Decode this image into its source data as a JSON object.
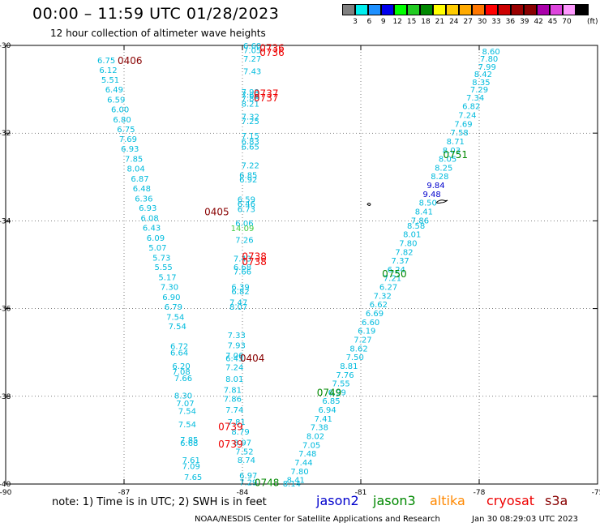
{
  "header": {
    "title": "00:00 – 11:59 UTC 01/28/2023",
    "subtitle": "12 hour collection of altimeter wave heights"
  },
  "legend": {
    "unit": "(ft)",
    "colors": [
      "#808080",
      "#00eeee",
      "#1e90ff",
      "#0000ee",
      "#00ff00",
      "#22cc22",
      "#008800",
      "#ffff00",
      "#ffcc00",
      "#ffaa00",
      "#ff7700",
      "#ff0000",
      "#cc0000",
      "#990000",
      "#880000",
      "#aa00aa",
      "#dd44dd",
      "#ff99ff",
      "#000000"
    ],
    "labels": [
      "3",
      "6",
      "9",
      "12",
      "15",
      "18",
      "21",
      "24",
      "27",
      "30",
      "33",
      "36",
      "39",
      "42",
      "45",
      "70"
    ]
  },
  "axes": {
    "x_ticks": [
      "-90",
      "-87",
      "-84",
      "-81",
      "-78",
      "-75"
    ],
    "y_ticks": [
      "-30",
      "-32",
      "-34",
      "-36",
      "-38",
      "-40"
    ]
  },
  "footer": {
    "note": "note:  1) Time is in UTC;  2) SWH is in feet",
    "satellites": [
      {
        "name": "jason2",
        "color": "#0000cc"
      },
      {
        "name": "jason3",
        "color": "#008800"
      },
      {
        "name": "altika",
        "color": "#ff8800"
      },
      {
        "name": "cryosat",
        "color": "#ee0000"
      },
      {
        "name": "s3a",
        "color": "#880000"
      }
    ],
    "credit": "NOAA/NESDIS Center for Satellite Applications and Research",
    "timestamp": "Jan 30 08:29:03 UTC 2023"
  },
  "time_labels": [
    {
      "text": "0406",
      "color": "#880000",
      "lon": -86.85,
      "lat": -30.33
    },
    {
      "text": "0736",
      "color": "#ee0000",
      "lon": -83.25,
      "lat": -30.05
    },
    {
      "text": "0736",
      "color": "#ee0000",
      "lon": -83.25,
      "lat": -30.15
    },
    {
      "text": "0737",
      "color": "#ee0000",
      "lon": -83.4,
      "lat": -31.08
    },
    {
      "text": "0737",
      "color": "#ee0000",
      "lon": -83.4,
      "lat": -31.18
    },
    {
      "text": "0751",
      "color": "#008800",
      "lon": -78.6,
      "lat": -32.48
    },
    {
      "text": "0405",
      "color": "#880000",
      "lon": -84.65,
      "lat": -33.78
    },
    {
      "text": "0738",
      "color": "#ee0000",
      "lon": -83.7,
      "lat": -34.8
    },
    {
      "text": "0738",
      "color": "#ee0000",
      "lon": -83.7,
      "lat": -34.92
    },
    {
      "text": "0750",
      "color": "#008800",
      "lon": -80.15,
      "lat": -35.19
    },
    {
      "text": "0404",
      "color": "#880000",
      "lon": -83.75,
      "lat": -37.12
    },
    {
      "text": "0749",
      "color": "#008800",
      "lon": -81.8,
      "lat": -37.9
    },
    {
      "text": "0739",
      "color": "#ee0000",
      "lon": -84.3,
      "lat": -38.68
    },
    {
      "text": "0739",
      "color": "#ee0000",
      "lon": -84.3,
      "lat": -39.08
    },
    {
      "text": "0748",
      "color": "#008800",
      "lon": -83.38,
      "lat": -39.95
    }
  ],
  "swh_readings": [
    {
      "v": "6.75",
      "lon": -87.45,
      "lat": -30.33,
      "c": "#00bbdd"
    },
    {
      "v": "6.12",
      "lon": -87.4,
      "lat": -30.55,
      "c": "#00bbdd"
    },
    {
      "v": "5.51",
      "lon": -87.35,
      "lat": -30.78,
      "c": "#00bbdd"
    },
    {
      "v": "6.49",
      "lon": -87.25,
      "lat": -31.0,
      "c": "#00bbdd"
    },
    {
      "v": "6.59",
      "lon": -87.2,
      "lat": -31.23,
      "c": "#00bbdd"
    },
    {
      "v": "6.00",
      "lon": -87.1,
      "lat": -31.45,
      "c": "#00bbdd"
    },
    {
      "v": "6.80",
      "lon": -87.05,
      "lat": -31.68,
      "c": "#00bbdd"
    },
    {
      "v": "6.75",
      "lon": -86.95,
      "lat": -31.9,
      "c": "#00bbdd"
    },
    {
      "v": "7.69",
      "lon": -86.9,
      "lat": -32.13,
      "c": "#00bbdd"
    },
    {
      "v": "6.93",
      "lon": -86.85,
      "lat": -32.35,
      "c": "#00bbdd"
    },
    {
      "v": "7.85",
      "lon": -86.75,
      "lat": -32.58,
      "c": "#00bbdd"
    },
    {
      "v": "8.04",
      "lon": -86.7,
      "lat": -32.8,
      "c": "#00bbdd"
    },
    {
      "v": "6.87",
      "lon": -86.6,
      "lat": -33.03,
      "c": "#00bbdd"
    },
    {
      "v": "6.48",
      "lon": -86.55,
      "lat": -33.25,
      "c": "#00bbdd"
    },
    {
      "v": "6.36",
      "lon": -86.5,
      "lat": -33.48,
      "c": "#00bbdd"
    },
    {
      "v": "6.93",
      "lon": -86.4,
      "lat": -33.7,
      "c": "#00bbdd"
    },
    {
      "v": "6.08",
      "lon": -86.35,
      "lat": -33.93,
      "c": "#00bbdd"
    },
    {
      "v": "6.43",
      "lon": -86.3,
      "lat": -34.15,
      "c": "#00bbdd"
    },
    {
      "v": "6.09",
      "lon": -86.2,
      "lat": -34.38,
      "c": "#00bbdd"
    },
    {
      "v": "5.07",
      "lon": -86.15,
      "lat": -34.6,
      "c": "#00bbdd"
    },
    {
      "v": "5.73",
      "lon": -86.05,
      "lat": -34.83,
      "c": "#00bbdd"
    },
    {
      "v": "5.55",
      "lon": -86.0,
      "lat": -35.05,
      "c": "#00bbdd"
    },
    {
      "v": "5.17",
      "lon": -85.9,
      "lat": -35.28,
      "c": "#00bbdd"
    },
    {
      "v": "7.30",
      "lon": -85.85,
      "lat": -35.5,
      "c": "#00bbdd"
    },
    {
      "v": "6.90",
      "lon": -85.8,
      "lat": -35.73,
      "c": "#00bbdd"
    },
    {
      "v": "6.79",
      "lon": -85.75,
      "lat": -35.95,
      "c": "#00bbdd"
    },
    {
      "v": "7.54",
      "lon": -85.7,
      "lat": -36.18,
      "c": "#00bbdd"
    },
    {
      "v": "7.54",
      "lon": -85.65,
      "lat": -36.4,
      "c": "#00bbdd"
    },
    {
      "v": "6.72",
      "lon": -85.6,
      "lat": -36.85,
      "c": "#00bbdd"
    },
    {
      "v": "6.64",
      "lon": -85.6,
      "lat": -37.0,
      "c": "#00bbdd"
    },
    {
      "v": "6.20",
      "lon": -85.55,
      "lat": -37.3,
      "c": "#00bbdd"
    },
    {
      "v": "7.08",
      "lon": -85.55,
      "lat": -37.43,
      "c": "#00bbdd"
    },
    {
      "v": "7.66",
      "lon": -85.5,
      "lat": -37.58,
      "c": "#00bbdd"
    },
    {
      "v": "8.30",
      "lon": -85.5,
      "lat": -37.98,
      "c": "#00bbdd"
    },
    {
      "v": "7.07",
      "lon": -85.45,
      "lat": -38.15,
      "c": "#00bbdd"
    },
    {
      "v": "7.54",
      "lon": -85.4,
      "lat": -38.33,
      "c": "#00bbdd"
    },
    {
      "v": "7.54",
      "lon": -85.4,
      "lat": -38.63,
      "c": "#00bbdd"
    },
    {
      "v": "7.85",
      "lon": -85.35,
      "lat": -38.98,
      "c": "#00bbdd"
    },
    {
      "v": "6.68",
      "lon": -85.35,
      "lat": -39.06,
      "c": "#00bbdd"
    },
    {
      "v": "7.61",
      "lon": -85.3,
      "lat": -39.45,
      "c": "#00bbdd"
    },
    {
      "v": "7.09",
      "lon": -85.3,
      "lat": -39.58,
      "c": "#00bbdd"
    },
    {
      "v": "7.65",
      "lon": -85.25,
      "lat": -39.83,
      "c": "#00bbdd"
    },
    {
      "v": "6.60",
      "lon": -83.75,
      "lat": -30.0,
      "c": "#00bbdd"
    },
    {
      "v": "7.05",
      "lon": -83.75,
      "lat": -30.1,
      "c": "#00bbdd"
    },
    {
      "v": "7.27",
      "lon": -83.75,
      "lat": -30.3,
      "c": "#00bbdd"
    },
    {
      "v": "7.43",
      "lon": -83.75,
      "lat": -30.58,
      "c": "#00bbdd"
    },
    {
      "v": "7.93",
      "lon": -83.8,
      "lat": -31.05,
      "c": "#00bbdd"
    },
    {
      "v": "7.69",
      "lon": -83.8,
      "lat": -31.12,
      "c": "#00bbdd"
    },
    {
      "v": "7.88",
      "lon": -83.8,
      "lat": -31.2,
      "c": "#00bbdd"
    },
    {
      "v": "8.21",
      "lon": -83.8,
      "lat": -31.32,
      "c": "#00bbdd"
    },
    {
      "v": "7.32",
      "lon": -83.8,
      "lat": -31.62,
      "c": "#00bbdd"
    },
    {
      "v": "7.25",
      "lon": -83.8,
      "lat": -31.72,
      "c": "#00bbdd"
    },
    {
      "v": "7.15",
      "lon": -83.8,
      "lat": -32.05,
      "c": "#00bbdd"
    },
    {
      "v": "6.83",
      "lon": -83.8,
      "lat": -32.18,
      "c": "#00bbdd"
    },
    {
      "v": "6.65",
      "lon": -83.8,
      "lat": -32.3,
      "c": "#00bbdd"
    },
    {
      "v": "7.22",
      "lon": -83.8,
      "lat": -32.73,
      "c": "#00bbdd"
    },
    {
      "v": "6.85",
      "lon": -83.85,
      "lat": -32.95,
      "c": "#00bbdd"
    },
    {
      "v": "6.92",
      "lon": -83.85,
      "lat": -33.05,
      "c": "#00bbdd"
    },
    {
      "v": "6.59",
      "lon": -83.9,
      "lat": -33.5,
      "c": "#00bbdd"
    },
    {
      "v": "6.46",
      "lon": -83.9,
      "lat": -33.6,
      "c": "#00bbdd"
    },
    {
      "v": "6.73",
      "lon": -83.9,
      "lat": -33.72,
      "c": "#00bbdd"
    },
    {
      "v": "6.06",
      "lon": -83.95,
      "lat": -34.05,
      "c": "#00bbdd"
    },
    {
      "v": "14.09",
      "lon": -84.0,
      "lat": -34.16,
      "c": "#44cc44"
    },
    {
      "v": "7.26",
      "lon": -83.95,
      "lat": -34.43,
      "c": "#00bbdd"
    },
    {
      "v": "7.43",
      "lon": -84.0,
      "lat": -34.85,
      "c": "#00bbdd"
    },
    {
      "v": "6.68",
      "lon": -84.0,
      "lat": -35.05,
      "c": "#00bbdd"
    },
    {
      "v": "7.66",
      "lon": -84.0,
      "lat": -35.15,
      "c": "#00bbdd"
    },
    {
      "v": "6.39",
      "lon": -84.05,
      "lat": -35.5,
      "c": "#00bbdd"
    },
    {
      "v": "6.82",
      "lon": -84.05,
      "lat": -35.6,
      "c": "#00bbdd"
    },
    {
      "v": "7.47",
      "lon": -84.1,
      "lat": -35.85,
      "c": "#00bbdd"
    },
    {
      "v": "8.07",
      "lon": -84.1,
      "lat": -35.95,
      "c": "#00bbdd"
    },
    {
      "v": "7.33",
      "lon": -84.15,
      "lat": -36.6,
      "c": "#00bbdd"
    },
    {
      "v": "7.93",
      "lon": -84.15,
      "lat": -36.83,
      "c": "#00bbdd"
    },
    {
      "v": "7.06",
      "lon": -84.2,
      "lat": -37.06,
      "c": "#00bbdd"
    },
    {
      "v": "6.45",
      "lon": -84.2,
      "lat": -37.13,
      "c": "#00bbdd"
    },
    {
      "v": "7.24",
      "lon": -84.2,
      "lat": -37.33,
      "c": "#00bbdd"
    },
    {
      "v": "8.01",
      "lon": -84.2,
      "lat": -37.6,
      "c": "#00bbdd"
    },
    {
      "v": "7.81",
      "lon": -84.25,
      "lat": -37.85,
      "c": "#00bbdd"
    },
    {
      "v": "7.86",
      "lon": -84.25,
      "lat": -38.05,
      "c": "#00bbdd"
    },
    {
      "v": "7.74",
      "lon": -84.2,
      "lat": -38.3,
      "c": "#00bbdd"
    },
    {
      "v": "7.81",
      "lon": -84.15,
      "lat": -38.58,
      "c": "#00bbdd"
    },
    {
      "v": "8.79",
      "lon": -84.05,
      "lat": -38.8,
      "c": "#00bbdd"
    },
    {
      "v": "8.97",
      "lon": -84.0,
      "lat": -39.05,
      "c": "#00bbdd"
    },
    {
      "v": "7.52",
      "lon": -83.95,
      "lat": -39.25,
      "c": "#00bbdd"
    },
    {
      "v": "8.74",
      "lon": -83.9,
      "lat": -39.45,
      "c": "#00bbdd"
    },
    {
      "v": "6.97",
      "lon": -83.85,
      "lat": -39.8,
      "c": "#00bbdd"
    },
    {
      "v": "7.29",
      "lon": -83.85,
      "lat": -39.95,
      "c": "#00bbdd"
    },
    {
      "v": "8.60",
      "lon": -77.7,
      "lat": -30.13,
      "c": "#00bbdd"
    },
    {
      "v": "7.80",
      "lon": -77.75,
      "lat": -30.3,
      "c": "#00bbdd"
    },
    {
      "v": "7.99",
      "lon": -77.8,
      "lat": -30.48,
      "c": "#00bbdd"
    },
    {
      "v": "8.42",
      "lon": -77.9,
      "lat": -30.65,
      "c": "#00bbdd"
    },
    {
      "v": "8.35",
      "lon": -77.95,
      "lat": -30.83,
      "c": "#00bbdd"
    },
    {
      "v": "7.29",
      "lon": -78.0,
      "lat": -31.0,
      "c": "#00bbdd"
    },
    {
      "v": "7.34",
      "lon": -78.1,
      "lat": -31.18,
      "c": "#00bbdd"
    },
    {
      "v": "6.82",
      "lon": -78.2,
      "lat": -31.38,
      "c": "#00bbdd"
    },
    {
      "v": "7.24",
      "lon": -78.3,
      "lat": -31.58,
      "c": "#00bbdd"
    },
    {
      "v": "7.69",
      "lon": -78.4,
      "lat": -31.78,
      "c": "#00bbdd"
    },
    {
      "v": "7.58",
      "lon": -78.5,
      "lat": -31.98,
      "c": "#00bbdd"
    },
    {
      "v": "8.71",
      "lon": -78.6,
      "lat": -32.18,
      "c": "#00bbdd"
    },
    {
      "v": "8.03",
      "lon": -78.7,
      "lat": -32.38,
      "c": "#00bbdd"
    },
    {
      "v": "8.05",
      "lon": -78.8,
      "lat": -32.58,
      "c": "#00bbdd"
    },
    {
      "v": "8.25",
      "lon": -78.9,
      "lat": -32.78,
      "c": "#00bbdd"
    },
    {
      "v": "8.28",
      "lon": -79.0,
      "lat": -32.98,
      "c": "#00bbdd"
    },
    {
      "v": "9.84",
      "lon": -79.1,
      "lat": -33.18,
      "c": "#0000cc"
    },
    {
      "v": "9.48",
      "lon": -79.2,
      "lat": -33.38,
      "c": "#0000cc"
    },
    {
      "v": "8.50",
      "lon": -79.3,
      "lat": -33.58,
      "c": "#00bbdd"
    },
    {
      "v": "8.41",
      "lon": -79.4,
      "lat": -33.78,
      "c": "#00bbdd"
    },
    {
      "v": "7.86",
      "lon": -79.5,
      "lat": -33.98,
      "c": "#00bbdd"
    },
    {
      "v": "8.58",
      "lon": -79.6,
      "lat": -34.1,
      "c": "#00bbdd"
    },
    {
      "v": "8.01",
      "lon": -79.7,
      "lat": -34.3,
      "c": "#00bbdd"
    },
    {
      "v": "7.80",
      "lon": -79.8,
      "lat": -34.5,
      "c": "#00bbdd"
    },
    {
      "v": "7.82",
      "lon": -79.9,
      "lat": -34.7,
      "c": "#00bbdd"
    },
    {
      "v": "7.37",
      "lon": -80.0,
      "lat": -34.9,
      "c": "#00bbdd"
    },
    {
      "v": "6.24",
      "lon": -80.1,
      "lat": -35.1,
      "c": "#00bbdd"
    },
    {
      "v": "7.21",
      "lon": -80.2,
      "lat": -35.3,
      "c": "#00bbdd"
    },
    {
      "v": "6.27",
      "lon": -80.3,
      "lat": -35.5,
      "c": "#00bbdd"
    },
    {
      "v": "7.32",
      "lon": -80.45,
      "lat": -35.7,
      "c": "#00bbdd"
    },
    {
      "v": "6.62",
      "lon": -80.55,
      "lat": -35.9,
      "c": "#00bbdd"
    },
    {
      "v": "6.69",
      "lon": -80.65,
      "lat": -36.1,
      "c": "#00bbdd"
    },
    {
      "v": "6.60",
      "lon": -80.75,
      "lat": -36.3,
      "c": "#00bbdd"
    },
    {
      "v": "6.19",
      "lon": -80.85,
      "lat": -36.5,
      "c": "#00bbdd"
    },
    {
      "v": "7.27",
      "lon": -80.95,
      "lat": -36.7,
      "c": "#00bbdd"
    },
    {
      "v": "8.62",
      "lon": -81.05,
      "lat": -36.9,
      "c": "#00bbdd"
    },
    {
      "v": "7.50",
      "lon": -81.15,
      "lat": -37.1,
      "c": "#00bbdd"
    },
    {
      "v": "8.81",
      "lon": -81.3,
      "lat": -37.3,
      "c": "#00bbdd"
    },
    {
      "v": "7.76",
      "lon": -81.4,
      "lat": -37.5,
      "c": "#00bbdd"
    },
    {
      "v": "7.55",
      "lon": -81.5,
      "lat": -37.7,
      "c": "#00bbdd"
    },
    {
      "v": "6.99",
      "lon": -81.6,
      "lat": -37.9,
      "c": "#00bbdd"
    },
    {
      "v": "6.85",
      "lon": -81.75,
      "lat": -38.1,
      "c": "#00bbdd"
    },
    {
      "v": "6.94",
      "lon": -81.85,
      "lat": -38.3,
      "c": "#00bbdd"
    },
    {
      "v": "7.41",
      "lon": -81.95,
      "lat": -38.5,
      "c": "#00bbdd"
    },
    {
      "v": "7.38",
      "lon": -82.05,
      "lat": -38.7,
      "c": "#00bbdd"
    },
    {
      "v": "8.02",
      "lon": -82.15,
      "lat": -38.9,
      "c": "#00bbdd"
    },
    {
      "v": "7.05",
      "lon": -82.25,
      "lat": -39.1,
      "c": "#00bbdd"
    },
    {
      "v": "7.48",
      "lon": -82.35,
      "lat": -39.3,
      "c": "#00bbdd"
    },
    {
      "v": "7.44",
      "lon": -82.45,
      "lat": -39.5,
      "c": "#00bbdd"
    },
    {
      "v": "7.80",
      "lon": -82.55,
      "lat": -39.7,
      "c": "#00bbdd"
    },
    {
      "v": "8.41",
      "lon": -82.65,
      "lat": -39.9,
      "c": "#00bbdd"
    },
    {
      "v": "8.14",
      "lon": -82.75,
      "lat": -39.98,
      "c": "#00bbdd"
    }
  ]
}
